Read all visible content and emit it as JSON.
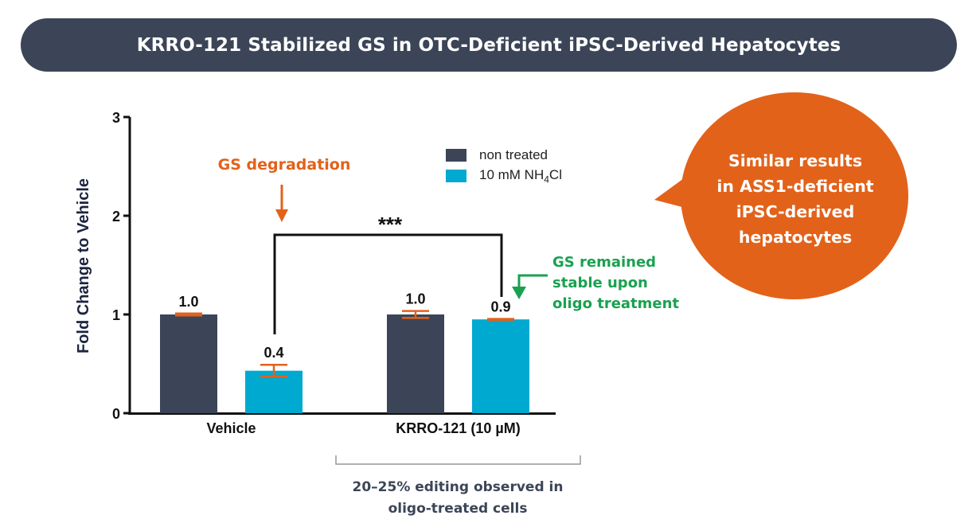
{
  "title": "KRRO-121 Stabilized GS in OTC-Deficient iPSC-Derived Hepatocytes",
  "colors": {
    "banner": "#3b4557",
    "non_treated": "#3b4557",
    "nh4cl": "#00a9cf",
    "orange": "#e2621a",
    "green": "#1aa150",
    "axis": "#111111"
  },
  "chart_data": {
    "type": "bar",
    "categories": [
      "Vehicle",
      "KRRO-121 (10 µM)"
    ],
    "series": [
      {
        "name": "non treated",
        "values": [
          1.0,
          1.0
        ],
        "error": [
          0.01,
          0.035
        ],
        "labels": [
          "1.0",
          "1.0"
        ]
      },
      {
        "name": "10 mM NH4Cl",
        "values": [
          0.43,
          0.95
        ],
        "error": [
          0.06,
          0.005
        ],
        "labels": [
          "0.4",
          "0.9"
        ]
      }
    ],
    "ylabel": "Fold Change to Vehicle",
    "ylim": [
      0,
      3
    ],
    "yticks": [
      "0",
      "1",
      "2",
      "3"
    ],
    "significance": "***",
    "legend_position": "top-center",
    "grid": false
  },
  "legend": {
    "item_1": "non treated",
    "item_2_prefix": "10 mM NH",
    "item_2_sub": "4",
    "item_2_suffix": "Cl"
  },
  "annotations": {
    "degradation": "GS degradation",
    "stable_lines": [
      "GS remained",
      "stable upon",
      "oligo treatment"
    ],
    "callout_lines": [
      "Similar results",
      "in ASS1-deficient",
      "iPSC-derived",
      "hepatocytes"
    ],
    "footnote_lines": [
      "20–25% editing observed in",
      "oligo-treated cells"
    ]
  }
}
